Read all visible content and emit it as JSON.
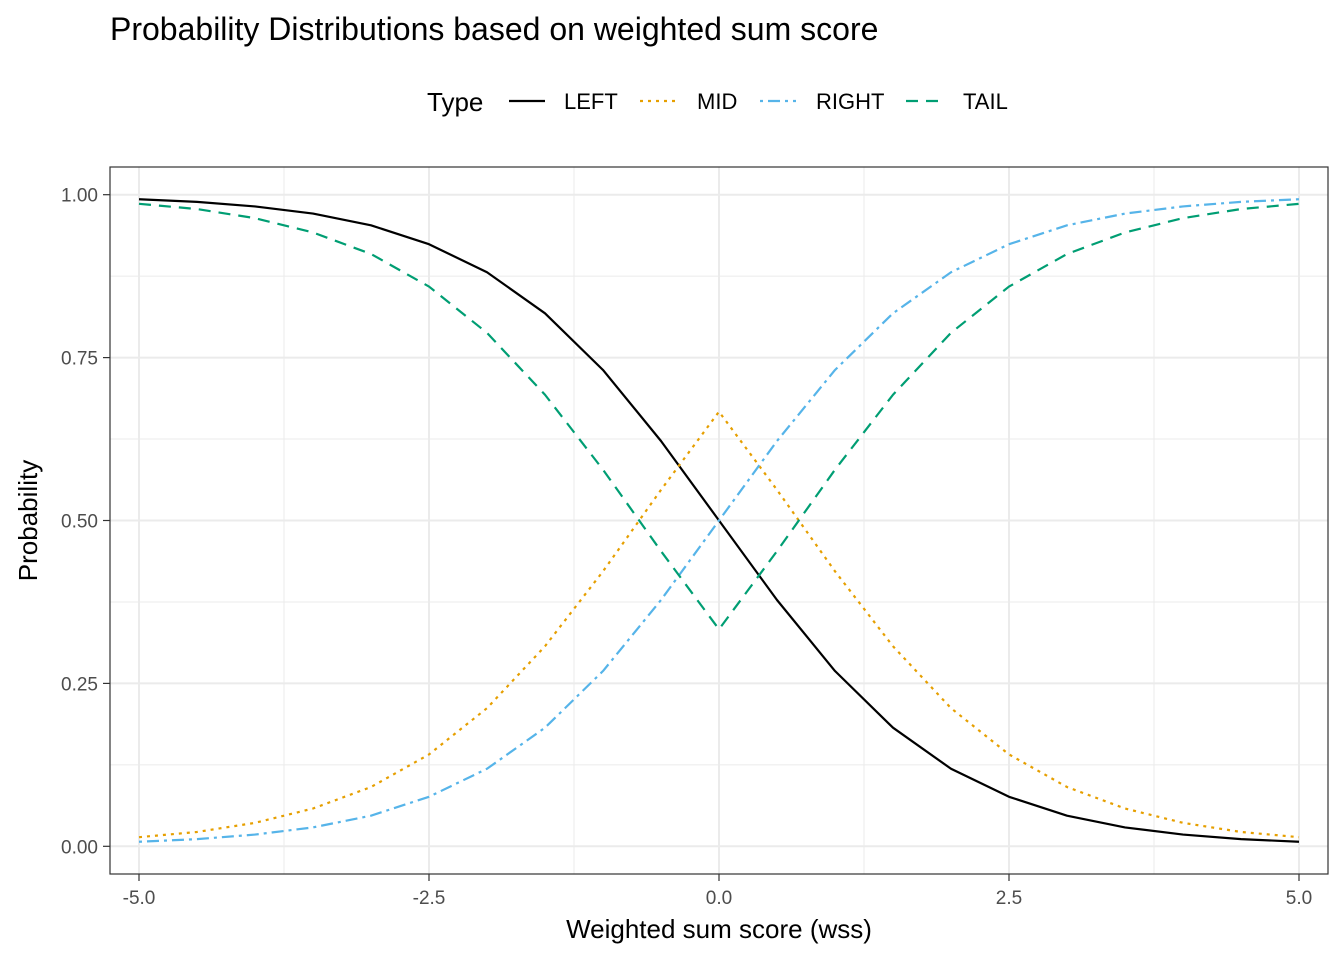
{
  "chart_data": {
    "type": "line",
    "title": "Probability Distributions based on weighted sum score",
    "xlabel": "Weighted sum score (wss)",
    "ylabel": "Probability",
    "xlim": [
      -5.25,
      5.25
    ],
    "ylim": [
      -0.0425,
      1.0425
    ],
    "xticks": [
      -5.0,
      -2.5,
      0.0,
      2.5,
      5.0
    ],
    "xtick_labels": [
      "-5.0",
      "-2.5",
      "0.0",
      "2.5",
      "5.0"
    ],
    "yticks": [
      0.0,
      0.25,
      0.5,
      0.75,
      1.0
    ],
    "ytick_labels": [
      "0.00",
      "0.25",
      "0.50",
      "0.75",
      "1.00"
    ],
    "grid": true,
    "legend": {
      "title": "Type",
      "position": "top",
      "entries": [
        "LEFT",
        "MID",
        "RIGHT",
        "TAIL"
      ]
    },
    "x": [
      -5.0,
      -4.5,
      -4.0,
      -3.5,
      -3.0,
      -2.5,
      -2.0,
      -1.5,
      -1.0,
      -0.5,
      0.0,
      0.5,
      1.0,
      1.5,
      2.0,
      2.5,
      3.0,
      3.5,
      4.0,
      4.5,
      5.0
    ],
    "series": [
      {
        "name": "LEFT",
        "color": "#000000",
        "dash": "solid",
        "values": [
          0.993,
          0.989,
          0.982,
          0.971,
          0.953,
          0.924,
          0.881,
          0.818,
          0.731,
          0.622,
          0.5,
          0.378,
          0.269,
          0.182,
          0.119,
          0.076,
          0.047,
          0.029,
          0.018,
          0.011,
          0.007
        ]
      },
      {
        "name": "MID",
        "color": "#E69F00",
        "dash": "dotted",
        "values": [
          0.014,
          0.022,
          0.036,
          0.058,
          0.091,
          0.141,
          0.212,
          0.307,
          0.422,
          0.547,
          0.667,
          0.547,
          0.422,
          0.307,
          0.212,
          0.141,
          0.091,
          0.058,
          0.036,
          0.022,
          0.014
        ]
      },
      {
        "name": "RIGHT",
        "color": "#56B4E9",
        "dash": "dotdash",
        "values": [
          0.007,
          0.011,
          0.018,
          0.029,
          0.047,
          0.076,
          0.119,
          0.182,
          0.269,
          0.378,
          0.5,
          0.622,
          0.731,
          0.818,
          0.881,
          0.924,
          0.953,
          0.971,
          0.982,
          0.989,
          0.993
        ]
      },
      {
        "name": "TAIL",
        "color": "#009E73",
        "dash": "dashed",
        "values": [
          0.986,
          0.978,
          0.964,
          0.942,
          0.909,
          0.859,
          0.788,
          0.693,
          0.578,
          0.453,
          0.333,
          0.453,
          0.578,
          0.693,
          0.788,
          0.859,
          0.909,
          0.942,
          0.964,
          0.978,
          0.986
        ]
      }
    ]
  }
}
